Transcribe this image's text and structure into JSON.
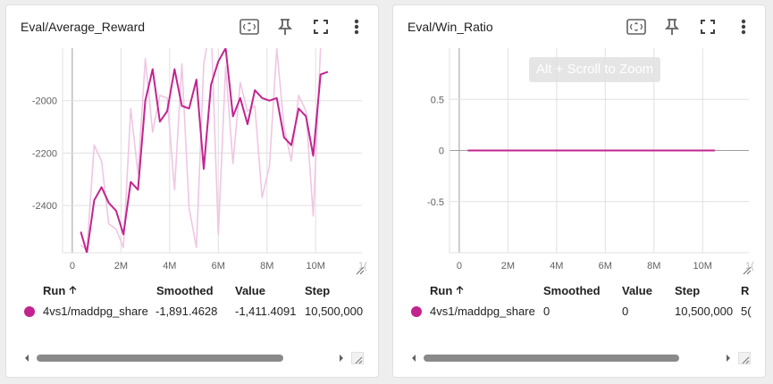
{
  "cards": [
    {
      "title": "Eval/Average_Reward",
      "hint": "",
      "table": {
        "headers": [
          "Run",
          "Smoothed",
          "Value",
          "Step"
        ],
        "sort_icon": "arrow-up-icon",
        "row": {
          "run": "4vs1/maddpg_share",
          "smoothed": "-1,891.4628",
          "value": "-1,411.4091",
          "step": "10,500,000"
        }
      },
      "chart_data": {
        "type": "line",
        "title": "",
        "xlabel": "",
        "ylabel": "",
        "xlim": [
          -0.4,
          11.9
        ],
        "ylim": [
          -2580,
          -1800
        ],
        "x_ticks": [
          0,
          2,
          4,
          6,
          8,
          10
        ],
        "x_tick_labels": [
          "0",
          "2M",
          "4M",
          "6M",
          "8M",
          "10M"
        ],
        "x_tick_partial": "1(",
        "y_ticks": [
          -2400,
          -2200,
          -2000
        ],
        "y_tick_labels": [
          "-2400",
          "-2200",
          "-2000"
        ],
        "grid": true,
        "series": [
          {
            "role": "raw",
            "color": "#f0c6e3",
            "x": [
              0.35,
              0.6,
              0.9,
              1.2,
              1.5,
              1.8,
              2.1,
              2.4,
              2.7,
              3.0,
              3.3,
              3.6,
              3.9,
              4.2,
              4.5,
              4.8,
              5.1,
              5.4,
              5.7,
              6.0,
              6.3,
              6.6,
              6.9,
              7.2,
              7.5,
              7.8,
              8.1,
              8.4,
              8.7,
              9.0,
              9.3,
              9.6,
              9.9,
              10.2,
              10.5
            ],
            "y": [
              -2550,
              -2570,
              -2170,
              -2230,
              -2470,
              -2490,
              -2560,
              -2030,
              -2280,
              -1840,
              -2120,
              -1980,
              -1990,
              -2340,
              -1860,
              -2410,
              -2560,
              -1860,
              -1700,
              -2510,
              -1870,
              -2240,
              -1930,
              -2040,
              -2020,
              -2370,
              -2250,
              -1800,
              -2100,
              -2230,
              -1980,
              -2040,
              -2440,
              -1800,
              -1410
            ]
          },
          {
            "role": "smoothed",
            "color": "#c2248f",
            "x": [
              0.35,
              0.6,
              0.9,
              1.2,
              1.5,
              1.8,
              2.1,
              2.4,
              2.7,
              3.0,
              3.3,
              3.6,
              3.9,
              4.2,
              4.5,
              4.8,
              5.1,
              5.4,
              5.7,
              6.0,
              6.3,
              6.6,
              6.9,
              7.2,
              7.5,
              7.8,
              8.1,
              8.4,
              8.7,
              9.0,
              9.3,
              9.6,
              9.9,
              10.2,
              10.5
            ],
            "y": [
              -2500,
              -2580,
              -2380,
              -2330,
              -2390,
              -2420,
              -2510,
              -2310,
              -2340,
              -2000,
              -1880,
              -2080,
              -2040,
              -1880,
              -2020,
              -2030,
              -1920,
              -2260,
              -1940,
              -1850,
              -1800,
              -2060,
              -1990,
              -2090,
              -1960,
              -1990,
              -2000,
              -1990,
              -2140,
              -2170,
              -2030,
              -2060,
              -2210,
              -1900,
              -1890
            ]
          }
        ]
      }
    },
    {
      "title": "Eval/Win_Ratio",
      "hint": "Alt + Scroll to Zoom",
      "table": {
        "headers": [
          "Run",
          "Smoothed",
          "Value",
          "Step",
          "R"
        ],
        "sort_icon": "arrow-up-icon",
        "row": {
          "run": "4vs1/maddpg_share",
          "smoothed": "0",
          "value": "0",
          "step": "10,500,000",
          "extra": "5("
        }
      },
      "chart_data": {
        "type": "line",
        "title": "",
        "xlabel": "",
        "ylabel": "",
        "xlim": [
          -0.4,
          11.9
        ],
        "ylim": [
          -1,
          1
        ],
        "x_ticks": [
          0,
          2,
          4,
          6,
          8,
          10
        ],
        "x_tick_labels": [
          "0",
          "2M",
          "4M",
          "6M",
          "8M",
          "10M"
        ],
        "x_tick_partial": "1(",
        "y_ticks": [
          -0.5,
          0,
          0.5
        ],
        "y_tick_labels": [
          "-0.5",
          "0",
          "0.5"
        ],
        "grid": true,
        "series": [
          {
            "role": "raw",
            "color": "#f0c6e3",
            "x": [
              0.35,
              10.5
            ],
            "y": [
              0,
              0
            ]
          },
          {
            "role": "smoothed",
            "color": "#c2248f",
            "x": [
              0.35,
              10.5
            ],
            "y": [
              0,
              0
            ]
          }
        ]
      }
    }
  ],
  "toolbar_icons": [
    "fit-to-data-icon",
    "pin-icon",
    "fullscreen-icon",
    "more-vert-icon"
  ],
  "colors": {
    "run": "#c2248f",
    "grid": "#e0e0e0",
    "axis": "#9e9e9e"
  }
}
